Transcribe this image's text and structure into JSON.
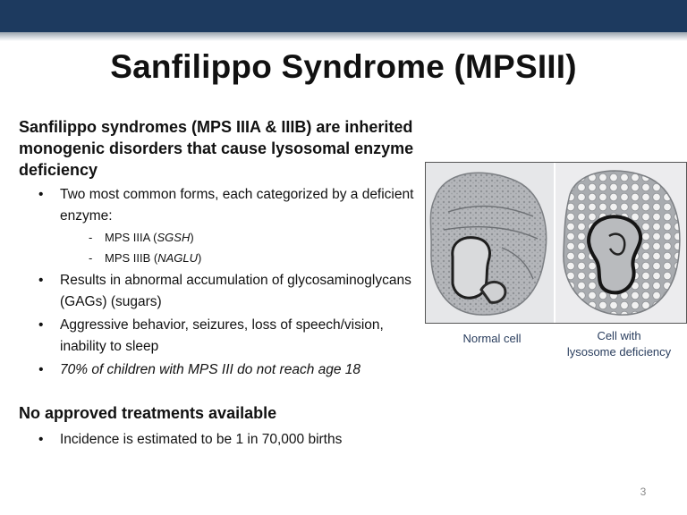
{
  "slide": {
    "title": "Sanfilippo Syndrome (MPSIII)",
    "intro_heading": "Sanfilippo syndromes (MPS IIIA & IIIB) are inherited monogenic disorders that cause lysosomal enzyme deficiency",
    "bullets": [
      "Two most common forms, each categorized by a deficient enzyme:",
      "Results in abnormal accumulation of glycosaminoglycans (GAGs) (sugars)",
      "Aggressive behavior, seizures, loss of speech/vision, inability to sleep",
      "70% of children with MPS III do not reach age 18"
    ],
    "subtypes": [
      {
        "name": "MPS IIIA (",
        "gene": "SGSH",
        "close": ")"
      },
      {
        "name": "MPS IIIB (",
        "gene": "NAGLU",
        "close": ")"
      }
    ],
    "treatment_heading": "No approved treatments available",
    "treatment_bullets": [
      "Incidence is estimated to be 1 in 70,000 births"
    ],
    "image_captions": {
      "left": "Normal cell",
      "right_line1": "Cell with",
      "right_line2": "lysosome deficiency"
    },
    "page_number": "3"
  },
  "colors": {
    "header_bar": "#1d3a5f",
    "caption_text": "#2a3e5e",
    "page_number": "#8a8a8a"
  }
}
